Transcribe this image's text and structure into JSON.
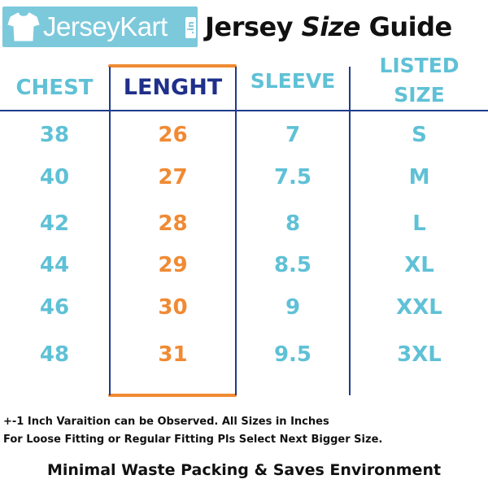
{
  "logo": {
    "brand": "JerseyKart",
    "tld": ".in",
    "icon": "tshirt-icon",
    "background_color": "#7cc9dc"
  },
  "title": {
    "part1": "Jersey ",
    "part2": "Size",
    "part3": " Guide"
  },
  "table": {
    "headers": {
      "chest": "CHEST",
      "length": "LENGHT",
      "sleeve": "SLEEVE",
      "listed_line1": "LISTED",
      "listed_line2": "SIZE"
    },
    "rows": [
      {
        "chest": "38",
        "length": "26",
        "sleeve": "7",
        "size": "S"
      },
      {
        "chest": "40",
        "length": "27",
        "sleeve": "7.5",
        "size": "M"
      },
      {
        "chest": "42",
        "length": "28",
        "sleeve": "8",
        "size": "L"
      },
      {
        "chest": "44",
        "length": "29",
        "sleeve": "8.5",
        "size": "XL"
      },
      {
        "chest": "46",
        "length": "30",
        "sleeve": "9",
        "size": "XXL"
      },
      {
        "chest": "48",
        "length": "31",
        "sleeve": "9.5",
        "size": "3XL"
      }
    ]
  },
  "notes": {
    "line1": "+-1 Inch Varaition can be Observed. All Sizes in Inches",
    "line2": "For Loose Fitting or Regular Fitting Pls Select Next Bigger Size."
  },
  "footer": "Minimal Waste Packing & Saves Environment",
  "colors": {
    "blue_text": "#5fc1d6",
    "orange_text": "#f08a33",
    "navy_text": "#1f2f8a",
    "divider": "#1f3b8a"
  }
}
